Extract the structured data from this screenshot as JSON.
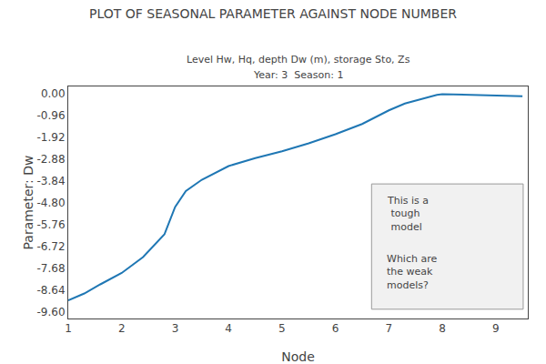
{
  "chart_data": {
    "type": "line",
    "title": "PLOT OF SEASONAL PARAMETER AGAINST NODE NUMBER",
    "subtitle": [
      "Level Hw, Hq, depth Dw (m), storage Sto, Zs",
      "Year: 3  Season: 1"
    ],
    "xlabel": "Node",
    "ylabel": "Parameter: Dw",
    "annotations": [
      "This is a\n tough\n model",
      "Which are\nthe weak\nmodels?"
    ],
    "x": [
      1.0,
      1.3,
      1.6,
      2.0,
      2.4,
      2.8,
      3.0,
      3.2,
      3.5,
      4.0,
      4.5,
      5.0,
      5.5,
      6.0,
      6.5,
      7.0,
      7.3,
      7.6,
      7.9,
      8.0,
      8.2,
      8.5,
      9.0,
      9.5
    ],
    "values": [
      -9.1,
      -8.8,
      -8.4,
      -7.9,
      -7.2,
      -6.2,
      -5.0,
      -4.3,
      -3.8,
      -3.2,
      -2.85,
      -2.55,
      -2.2,
      -1.8,
      -1.35,
      -0.75,
      -0.45,
      -0.25,
      -0.07,
      -0.04,
      -0.05,
      -0.07,
      -0.12,
      -0.13
    ],
    "xlim": [
      1,
      9.6
    ],
    "ylim": [
      -9.9,
      0.3
    ],
    "xticks": [
      1,
      2,
      3,
      4,
      5,
      6,
      7,
      8,
      9
    ],
    "yticks": [
      {
        "value": 0.0,
        "label": "0.00"
      },
      -0.96,
      -1.92,
      -2.88,
      -3.84,
      {
        "value": -4.8,
        "label": "-4.80"
      },
      -5.76,
      -6.72,
      -7.68,
      -8.64,
      {
        "value": -9.6,
        "label": "-9.60"
      }
    ],
    "grid": false
  }
}
